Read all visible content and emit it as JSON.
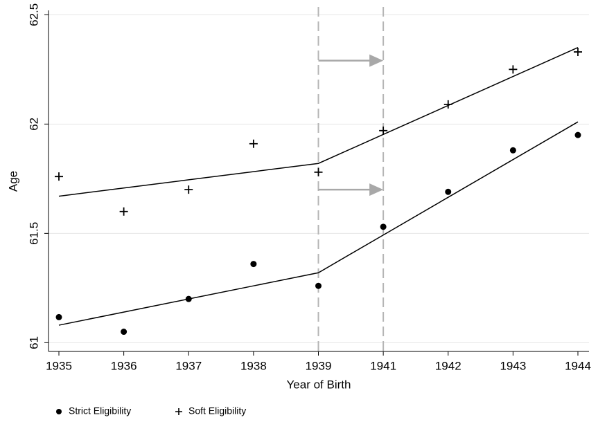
{
  "chart_data": {
    "type": "scatter",
    "x_label": "Year of Birth",
    "y_label": "Age",
    "categories": [
      "1935",
      "1936",
      "1937",
      "1938",
      "1939",
      "1941",
      "1942",
      "1943",
      "1944"
    ],
    "series": [
      {
        "name": "Strict Eligibility",
        "color": "#000000",
        "marker": "circle",
        "values": [
          61.117,
          61.05,
          61.2,
          61.36,
          61.26,
          61.53,
          61.69,
          61.88,
          61.95
        ]
      },
      {
        "name": "Soft Eligibility",
        "color": "#000000",
        "marker": "plus",
        "values": [
          61.76,
          61.6,
          61.7,
          61.91,
          61.78,
          61.97,
          62.09,
          62.25,
          62.33
        ]
      }
    ],
    "fit_lines": [
      {
        "color": "#000000",
        "values": [
          61.08,
          61.14,
          61.2,
          61.26,
          61.32,
          61.4925,
          61.665,
          61.8375,
          62.01
        ]
      },
      {
        "color": "#000000",
        "values": [
          61.67,
          61.7075,
          61.745,
          61.7825,
          61.82,
          61.9525,
          62.085,
          62.2175,
          62.35
        ]
      }
    ],
    "vlines": [
      "1939",
      "1941"
    ],
    "arrows": [
      {
        "from": "1939",
        "to": "1941",
        "y": 62.29
      },
      {
        "from": "1939",
        "to": "1941",
        "y": 61.7
      }
    ],
    "ylim": [
      60.96,
      62.52
    ],
    "yticks": [
      61,
      61.5,
      62,
      62.5
    ],
    "grid": true,
    "legend": "bottom"
  }
}
